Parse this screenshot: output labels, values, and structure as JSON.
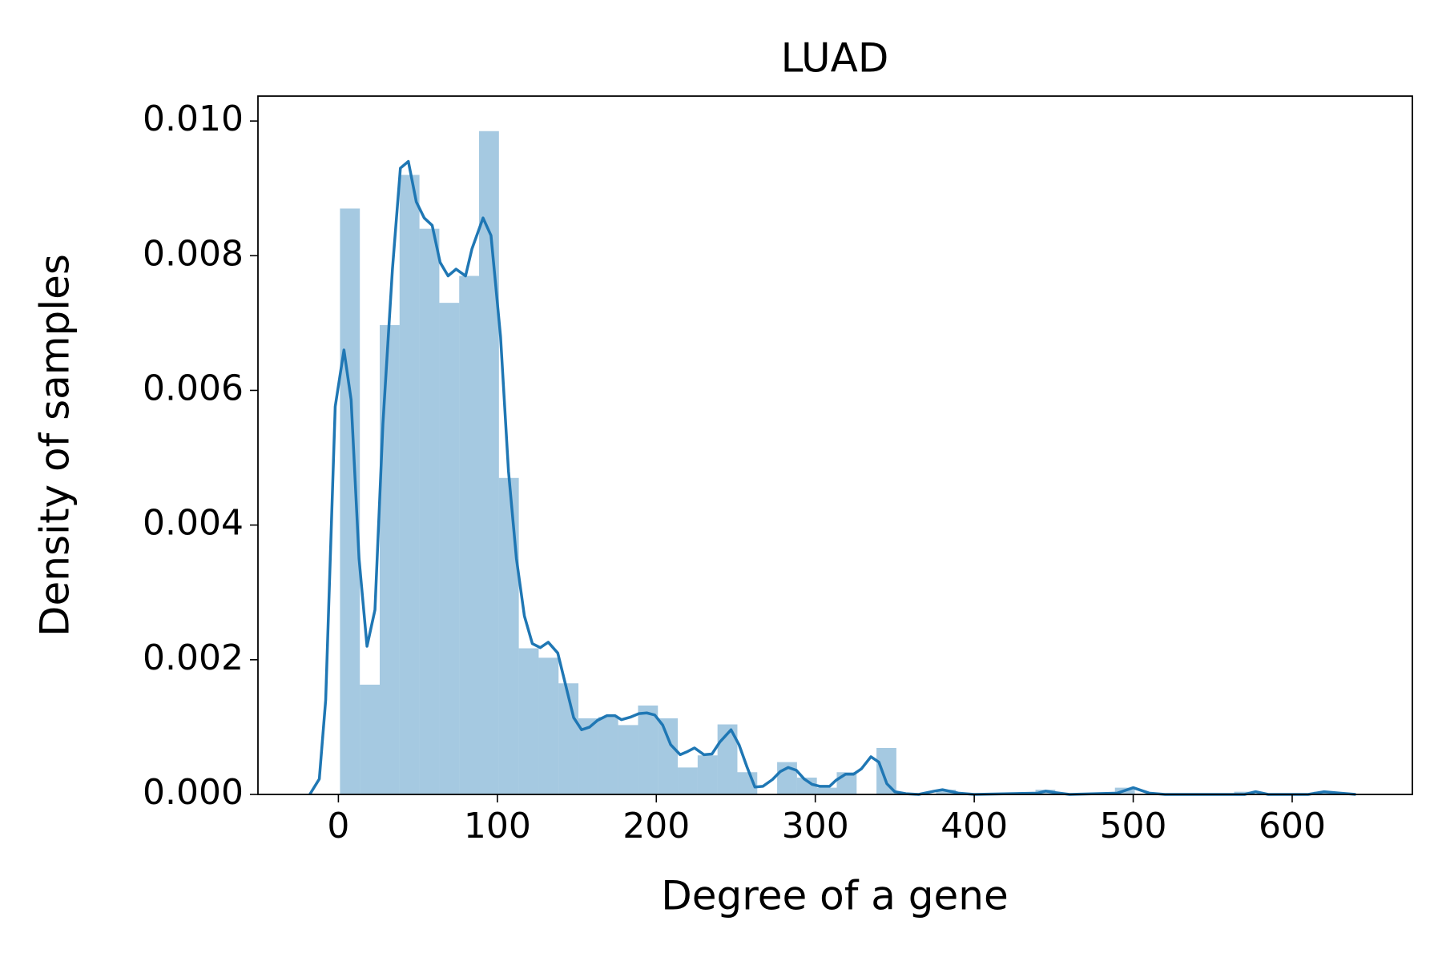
{
  "chart_data": {
    "type": "histogram",
    "title": "LUAD",
    "x_label": "Degree of a gene",
    "y_label": "Density of samples",
    "bins": [
      1,
      13.5,
      26,
      38.5,
      51,
      63.5,
      76,
      88.5,
      101,
      113.5,
      126,
      138.5,
      151,
      163.5,
      176,
      188.5,
      201,
      213.5,
      226,
      238.5,
      251,
      263.5,
      276,
      288.5,
      301,
      313.5,
      326,
      338.5,
      351,
      363.5,
      376,
      388.5,
      401,
      413.5,
      426,
      438.5,
      451,
      463.5,
      476,
      488.5,
      501,
      513.5,
      526,
      538.5,
      551,
      563.5,
      576,
      588.5,
      601,
      613.5,
      626
    ],
    "values": [
      0.0087,
      0.00163,
      0.00697,
      0.0092,
      0.0084,
      0.0073,
      0.0077,
      0.00985,
      0.0047,
      0.00217,
      0.00203,
      0.00165,
      0.00113,
      0.00115,
      0.00103,
      0.00132,
      0.00113,
      0.0004,
      0.00058,
      0.00104,
      0.00033,
      0,
      0.00048,
      0.00025,
      0.0001,
      0.00033,
      0,
      0.00069,
      0,
      0,
      7e-05,
      0,
      0,
      0,
      0,
      7e-05,
      0,
      0,
      0,
      0.0001,
      0,
      0,
      0,
      0,
      0,
      4e-05,
      0,
      0,
      0,
      4e-05
    ],
    "color": "#1f77b4",
    "kde": {
      "color": "#1f77b4",
      "x": [
        -18,
        -12,
        -8,
        -2,
        3.5,
        8,
        13,
        18,
        23,
        28,
        34,
        39,
        44,
        49,
        54,
        59,
        64,
        69,
        74,
        80,
        84,
        91,
        96,
        102,
        107,
        112,
        117,
        122,
        127,
        132,
        138,
        143,
        148,
        153,
        158,
        163,
        169,
        174,
        178,
        184,
        189,
        194,
        199,
        204,
        209,
        215,
        219,
        224,
        230,
        235,
        240,
        247,
        252,
        257,
        262,
        267,
        273,
        278,
        283,
        288,
        293,
        298,
        303,
        309,
        313,
        319,
        324,
        329,
        335,
        340,
        345,
        350,
        357,
        365,
        375,
        380,
        390,
        400,
        440,
        445,
        450,
        460,
        490,
        500,
        510,
        520,
        570,
        577,
        585,
        610,
        620,
        630,
        640
      ],
      "values": [
        0,
        0.00023,
        0.0014,
        0.00576,
        0.0066,
        0.00586,
        0.0035,
        0.0022,
        0.00274,
        0.0055,
        0.0078,
        0.0093,
        0.0094,
        0.0088,
        0.00856,
        0.00845,
        0.0079,
        0.0077,
        0.0078,
        0.0077,
        0.0081,
        0.00856,
        0.0083,
        0.0068,
        0.0048,
        0.0035,
        0.00265,
        0.00224,
        0.00218,
        0.00226,
        0.0021,
        0.00162,
        0.00114,
        0.00096,
        0.001,
        0.0011,
        0.00117,
        0.00117,
        0.00111,
        0.00115,
        0.0012,
        0.00121,
        0.00118,
        0.00103,
        0.00074,
        0.00059,
        0.00063,
        0.00069,
        0.00059,
        0.0006,
        0.00078,
        0.00096,
        0.00074,
        0.00041,
        0.00011,
        0.00012,
        0.00022,
        0.00034,
        0.0004,
        0.00036,
        0.00023,
        0.00015,
        0.00012,
        0.00012,
        0.00021,
        0.0003,
        0.0003,
        0.00038,
        0.00056,
        0.00048,
        0.00016,
        4e-05,
        1e-05,
        0,
        5e-05,
        7e-05,
        2e-05,
        0,
        2e-05,
        5e-05,
        3e-05,
        0,
        2e-05,
        0.0001,
        2e-05,
        0,
        0,
        4e-05,
        0,
        0,
        4e-05,
        2e-05,
        0
      ]
    },
    "xlim": [
      -50.6,
      675.6
    ],
    "ylim": [
      0,
      0.01037
    ],
    "xticks": [
      0,
      100,
      200,
      300,
      400,
      500,
      600
    ],
    "yticks": [
      {
        "value": 0,
        "label": "0.000"
      },
      {
        "value": 0.002,
        "label": "0.002"
      },
      {
        "value": 0.004,
        "label": "0.004"
      },
      {
        "value": 0.006,
        "label": "0.006"
      },
      {
        "value": 0.008,
        "label": "0.008"
      },
      {
        "value": 0.01,
        "label": "0.010"
      }
    ]
  }
}
